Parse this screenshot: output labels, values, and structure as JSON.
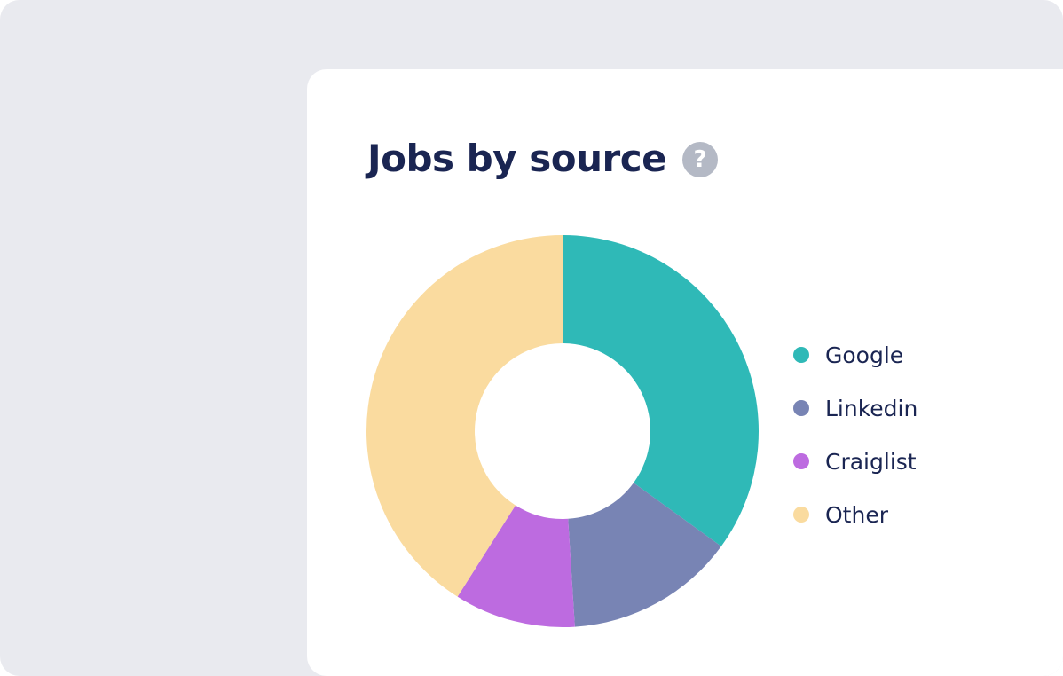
{
  "chart_data": {
    "type": "pie",
    "variant": "donut",
    "title": "Jobs by source",
    "categories": [
      "Google",
      "Linkedin",
      "Craiglist",
      "Other"
    ],
    "values": [
      35,
      14,
      10,
      41
    ],
    "colors": [
      "#2fb9b7",
      "#7884b4",
      "#bd6be0",
      "#fadb9f"
    ],
    "legend_position": "right"
  },
  "help_icon": {
    "name": "help-icon",
    "glyph": "?"
  }
}
